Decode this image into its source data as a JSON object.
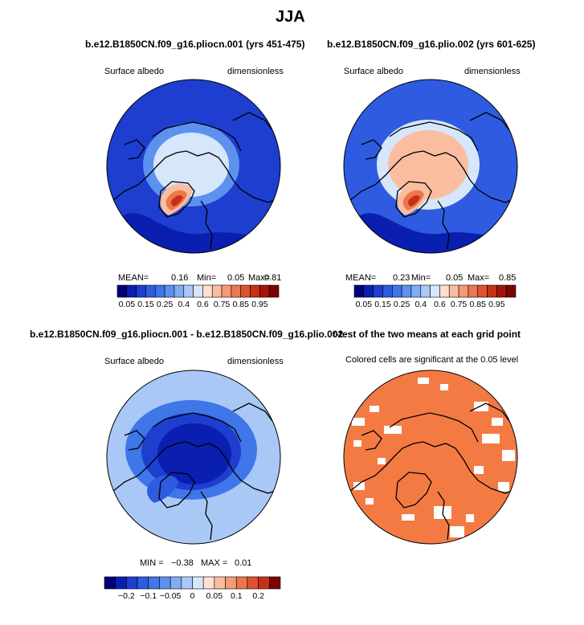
{
  "figure": {
    "title": "JJA"
  },
  "chart_data": [
    {
      "type": "heatmap",
      "title": "b.e12.B1850CN.f09_g16.pliocn.001 (yrs 451-475)",
      "variable": "Surface albedo",
      "units": "dimensionless",
      "projection": "north polar stereographic",
      "stats": {
        "mean_label": "MEAN=",
        "mean": "0.16",
        "min_label": "Min=",
        "min": "0.05",
        "max_label": "Max=",
        "max": "0.81"
      },
      "colorbar": {
        "levels": [
          0.05,
          0.1,
          0.15,
          0.2,
          0.25,
          0.3,
          0.35,
          0.4,
          0.5,
          0.6,
          0.65,
          0.7,
          0.75,
          0.8,
          0.85,
          0.9,
          0.95
        ],
        "tick_labels": [
          "0.05",
          "0.15",
          "0.25",
          "0.4",
          "0.6",
          "0.75",
          "0.85",
          "0.95"
        ],
        "colors": [
          "#00007a",
          "#0a1fb0",
          "#1e3ed0",
          "#2e5be0",
          "#3f76e8",
          "#5d91ee",
          "#81acf2",
          "#a9c8f6",
          "#d6e6fb",
          "#fde0cf",
          "#fbbda0",
          "#f59a76",
          "#ec764f",
          "#de532e",
          "#c53117",
          "#a3150b",
          "#7a0303"
        ]
      },
      "regions": [
        {
          "name": "ocean and land (low albedo)",
          "approx_value": 0.12
        },
        {
          "name": "central Arctic sea ice",
          "approx_value": 0.4
        },
        {
          "name": "Greenland ice sheet",
          "approx_value": 0.8
        }
      ]
    },
    {
      "type": "heatmap",
      "title": "b.e12.B1850CN.f09_g16.plio.002 (yrs 601-625)",
      "variable": "Surface albedo",
      "units": "dimensionless",
      "projection": "north polar stereographic",
      "stats": {
        "mean_label": "MEAN=",
        "mean": "0.23",
        "min_label": "Min=",
        "min": "0.05",
        "max_label": "Max=",
        "max": "0.85"
      },
      "colorbar": {
        "levels": [
          0.05,
          0.1,
          0.15,
          0.2,
          0.25,
          0.3,
          0.35,
          0.4,
          0.5,
          0.6,
          0.65,
          0.7,
          0.75,
          0.8,
          0.85,
          0.9,
          0.95
        ],
        "tick_labels": [
          "0.05",
          "0.15",
          "0.25",
          "0.4",
          "0.6",
          "0.75",
          "0.85",
          "0.95"
        ],
        "colors": [
          "#00007a",
          "#0a1fb0",
          "#1e3ed0",
          "#2e5be0",
          "#3f76e8",
          "#5d91ee",
          "#81acf2",
          "#a9c8f6",
          "#d6e6fb",
          "#fde0cf",
          "#fbbda0",
          "#f59a76",
          "#ec764f",
          "#de532e",
          "#c53117",
          "#a3150b",
          "#7a0303"
        ]
      },
      "regions": [
        {
          "name": "ocean and land (low albedo)",
          "approx_value": 0.15
        },
        {
          "name": "central Arctic sea ice",
          "approx_value": 0.6
        },
        {
          "name": "Greenland ice sheet",
          "approx_value": 0.82
        }
      ]
    },
    {
      "type": "heatmap",
      "title": "b.e12.B1850CN.f09_g16.pliocn.001 - b.e12.B1850CN.f09_g16.plio.002",
      "variable": "Surface albedo",
      "units": "dimensionless",
      "projection": "north polar stereographic",
      "stats": {
        "min_label": "MIN =",
        "min": "−0.38",
        "max_label": "MAX =",
        "max": "0.01"
      },
      "colorbar": {
        "levels": [
          -0.3,
          -0.2,
          -0.15,
          -0.1,
          -0.07,
          -0.05,
          -0.02,
          0,
          0.02,
          0.05,
          0.07,
          0.1,
          0.15,
          0.2,
          0.3
        ],
        "tick_labels": [
          "−0.2",
          "−0.1",
          "−0.05",
          "0",
          "0.05",
          "0.1",
          "0.2"
        ],
        "colors": [
          "#00007a",
          "#0a1fb0",
          "#1e3ed0",
          "#2e5be0",
          "#3f76e8",
          "#5d91ee",
          "#81acf2",
          "#a9c8f6",
          "#d6e6fb",
          "#fde0cf",
          "#fbbda0",
          "#f59a76",
          "#ec764f",
          "#de532e",
          "#c53117",
          "#7a0303"
        ]
      },
      "regions": [
        {
          "name": "background difference",
          "approx_value": -0.01
        },
        {
          "name": "central Arctic",
          "approx_value": -0.3
        }
      ]
    },
    {
      "type": "heatmap",
      "title": "t-test of the two means at each grid point",
      "subtitle": "Colored cells are significant at the 0.05 level",
      "projection": "north polar stereographic",
      "significance_color": "#f47a44",
      "regions": [
        {
          "name": "significant cells",
          "significant": true
        },
        {
          "name": "scattered non-significant cells",
          "significant": false
        }
      ]
    }
  ]
}
